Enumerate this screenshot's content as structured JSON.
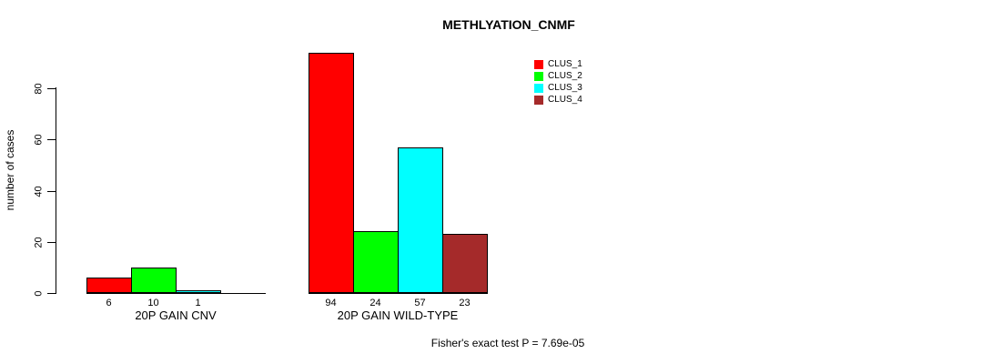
{
  "chart_data": {
    "type": "bar",
    "title": "METHLYATION_CNMF",
    "ylabel": "number of cases",
    "yticks": [
      0,
      20,
      40,
      60,
      80
    ],
    "ylim": [
      0,
      94
    ],
    "grid": false,
    "legend_position": "top-right",
    "series": [
      {
        "name": "CLUS_1",
        "color": "#FF0000"
      },
      {
        "name": "CLUS_2",
        "color": "#00FF00"
      },
      {
        "name": "CLUS_3",
        "color": "#00FFFF"
      },
      {
        "name": "CLUS_4",
        "color": "#A52A2A"
      }
    ],
    "groups": [
      {
        "label": "20P GAIN CNV",
        "values": [
          6,
          10,
          1,
          0
        ],
        "value_labels": [
          "6",
          "10",
          "1",
          ""
        ]
      },
      {
        "label": "20P GAIN WILD-TYPE",
        "values": [
          94,
          24,
          57,
          23
        ],
        "value_labels": [
          "94",
          "24",
          "57",
          "23"
        ]
      }
    ],
    "annotation": "Fisher's exact test P = 7.69e-05"
  }
}
